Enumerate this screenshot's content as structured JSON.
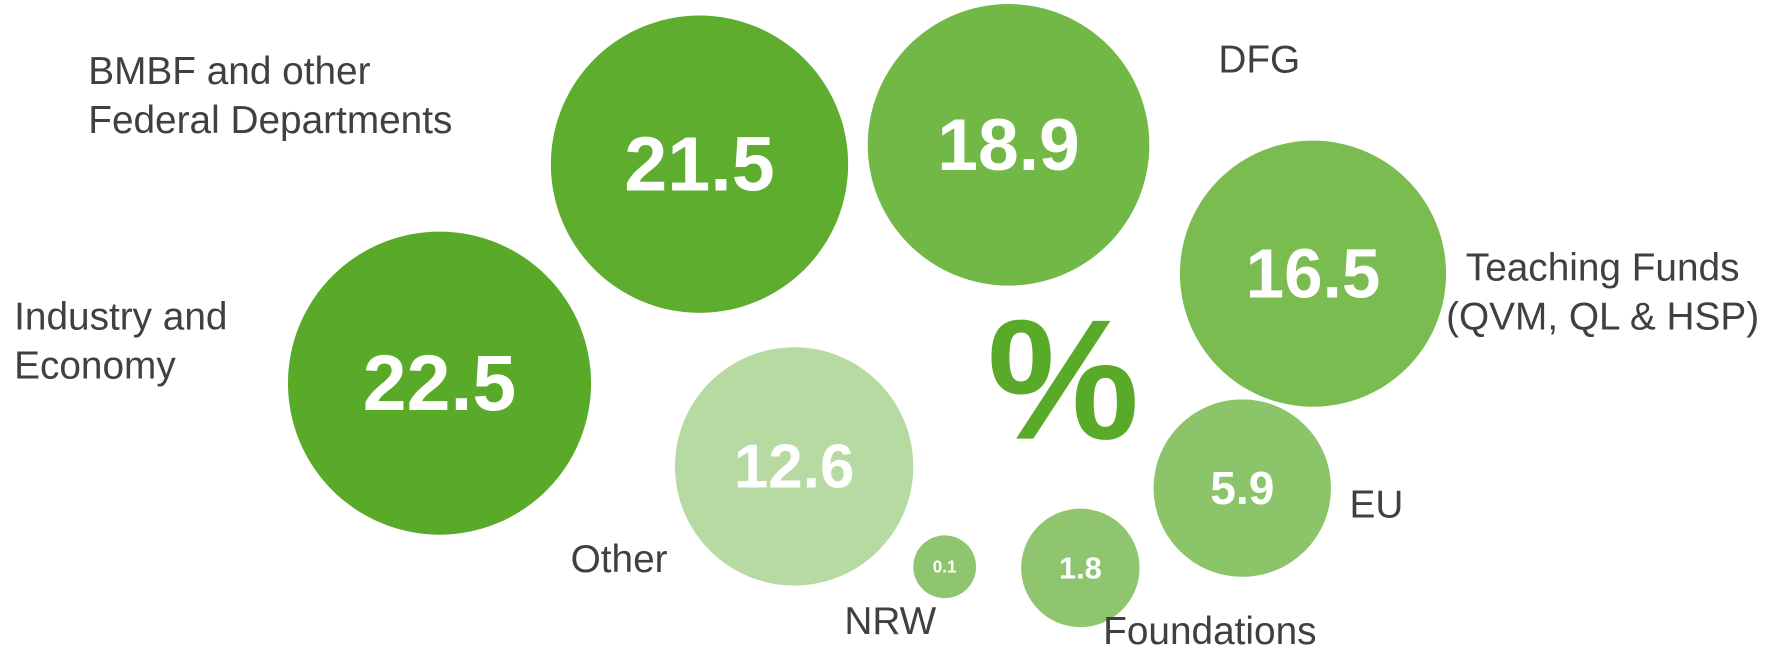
{
  "chart_data": {
    "type": "bubble",
    "unit": "%",
    "unit_color": "#5aaa2a",
    "categories": [
      [
        "Industry and",
        "Economy"
      ],
      [
        "BMBF and other",
        "Federal Departments"
      ],
      [
        "DFG"
      ],
      [
        "Teaching Funds",
        "(QVM, QL & HSP)"
      ],
      [
        "EU"
      ],
      [
        "Foundations"
      ],
      [
        "NRW"
      ],
      [
        "Other"
      ]
    ],
    "values": [
      22.5,
      21.5,
      18.9,
      16.5,
      5.9,
      1.8,
      0.1,
      12.6
    ],
    "colors": [
      "#5aaa2a",
      "#5fad2f",
      "#72b846",
      "#7abc4f",
      "#8cc46a",
      "#8fc56f",
      "#8fc56f",
      "#b7d9a2"
    ]
  }
}
